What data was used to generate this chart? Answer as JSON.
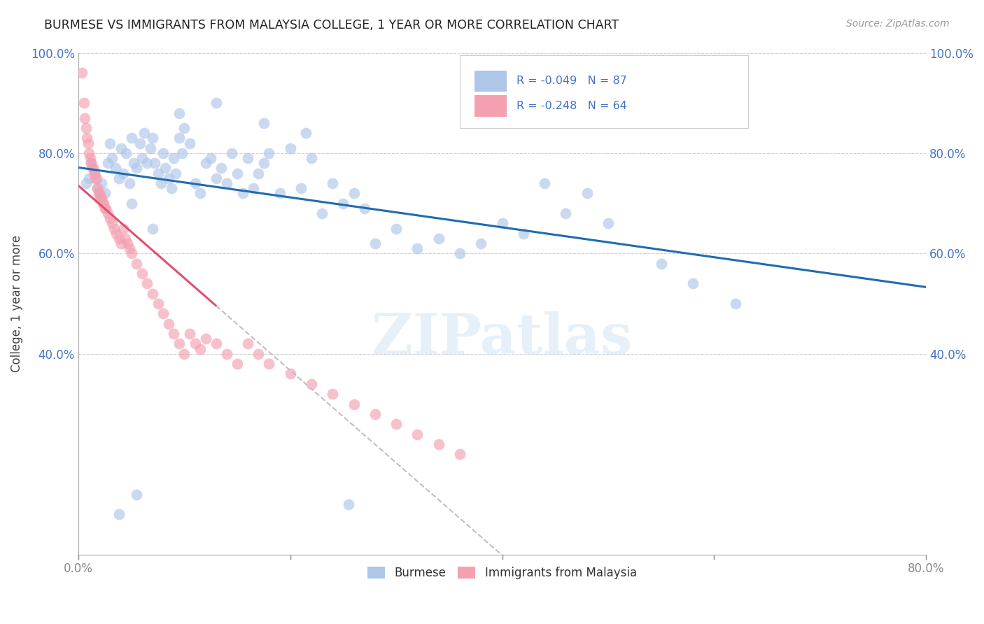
{
  "title": "BURMESE VS IMMIGRANTS FROM MALAYSIA COLLEGE, 1 YEAR OR MORE CORRELATION CHART",
  "source": "Source: ZipAtlas.com",
  "ylabel": "College, 1 year or more",
  "xlim": [
    0.0,
    0.8
  ],
  "ylim": [
    0.0,
    1.0
  ],
  "burmese_color": "#aec6e8",
  "malaysia_color": "#f4a0b0",
  "burmese_line_color": "#1f6cb0",
  "malaysia_line_color": "#e05070",
  "malaysia_line_dashed_color": "#c0c0c0",
  "watermark": "ZIPatlas",
  "grid_color": "#d0d0d0",
  "background_color": "#ffffff",
  "tick_color": "#4472c4",
  "burmese_x": [
    0.007,
    0.01,
    0.012,
    0.015,
    0.018,
    0.02,
    0.022,
    0.025,
    0.028,
    0.03,
    0.032,
    0.035,
    0.038,
    0.04,
    0.042,
    0.045,
    0.048,
    0.05,
    0.052,
    0.055,
    0.058,
    0.06,
    0.062,
    0.065,
    0.068,
    0.07,
    0.072,
    0.075,
    0.078,
    0.08,
    0.082,
    0.085,
    0.088,
    0.09,
    0.092,
    0.095,
    0.098,
    0.1,
    0.105,
    0.11,
    0.115,
    0.12,
    0.125,
    0.13,
    0.135,
    0.14,
    0.145,
    0.15,
    0.155,
    0.16,
    0.165,
    0.17,
    0.175,
    0.18,
    0.19,
    0.2,
    0.21,
    0.22,
    0.23,
    0.24,
    0.25,
    0.26,
    0.27,
    0.28,
    0.3,
    0.32,
    0.34,
    0.36,
    0.38,
    0.4,
    0.42,
    0.44,
    0.46,
    0.48,
    0.5,
    0.55,
    0.58,
    0.62,
    0.05,
    0.07,
    0.095,
    0.13,
    0.175,
    0.215,
    0.255,
    0.038,
    0.055
  ],
  "burmese_y": [
    0.74,
    0.75,
    0.78,
    0.76,
    0.73,
    0.71,
    0.74,
    0.72,
    0.78,
    0.82,
    0.79,
    0.77,
    0.75,
    0.81,
    0.76,
    0.8,
    0.74,
    0.83,
    0.78,
    0.77,
    0.82,
    0.79,
    0.84,
    0.78,
    0.81,
    0.83,
    0.78,
    0.76,
    0.74,
    0.8,
    0.77,
    0.75,
    0.73,
    0.79,
    0.76,
    0.83,
    0.8,
    0.85,
    0.82,
    0.74,
    0.72,
    0.78,
    0.79,
    0.75,
    0.77,
    0.74,
    0.8,
    0.76,
    0.72,
    0.79,
    0.73,
    0.76,
    0.78,
    0.8,
    0.72,
    0.81,
    0.73,
    0.79,
    0.68,
    0.74,
    0.7,
    0.72,
    0.69,
    0.62,
    0.65,
    0.61,
    0.63,
    0.6,
    0.62,
    0.66,
    0.64,
    0.74,
    0.68,
    0.72,
    0.66,
    0.58,
    0.54,
    0.5,
    0.7,
    0.65,
    0.88,
    0.9,
    0.86,
    0.84,
    0.1,
    0.08,
    0.12
  ],
  "malaysia_x": [
    0.003,
    0.005,
    0.006,
    0.007,
    0.008,
    0.009,
    0.01,
    0.011,
    0.012,
    0.013,
    0.014,
    0.015,
    0.016,
    0.017,
    0.018,
    0.019,
    0.02,
    0.021,
    0.022,
    0.023,
    0.024,
    0.025,
    0.026,
    0.028,
    0.03,
    0.032,
    0.034,
    0.036,
    0.038,
    0.04,
    0.042,
    0.044,
    0.046,
    0.048,
    0.05,
    0.055,
    0.06,
    0.065,
    0.07,
    0.075,
    0.08,
    0.085,
    0.09,
    0.095,
    0.1,
    0.105,
    0.11,
    0.115,
    0.12,
    0.13,
    0.14,
    0.15,
    0.16,
    0.17,
    0.18,
    0.2,
    0.22,
    0.24,
    0.26,
    0.28,
    0.3,
    0.32,
    0.34,
    0.36
  ],
  "malaysia_y": [
    0.96,
    0.9,
    0.87,
    0.85,
    0.83,
    0.82,
    0.8,
    0.79,
    0.78,
    0.77,
    0.77,
    0.76,
    0.75,
    0.75,
    0.73,
    0.72,
    0.72,
    0.71,
    0.71,
    0.7,
    0.7,
    0.69,
    0.69,
    0.68,
    0.67,
    0.66,
    0.65,
    0.64,
    0.63,
    0.62,
    0.65,
    0.63,
    0.62,
    0.61,
    0.6,
    0.58,
    0.56,
    0.54,
    0.52,
    0.5,
    0.48,
    0.46,
    0.44,
    0.42,
    0.4,
    0.44,
    0.42,
    0.41,
    0.43,
    0.42,
    0.4,
    0.38,
    0.42,
    0.4,
    0.38,
    0.36,
    0.34,
    0.32,
    0.3,
    0.28,
    0.26,
    0.24,
    0.22,
    0.2
  ]
}
